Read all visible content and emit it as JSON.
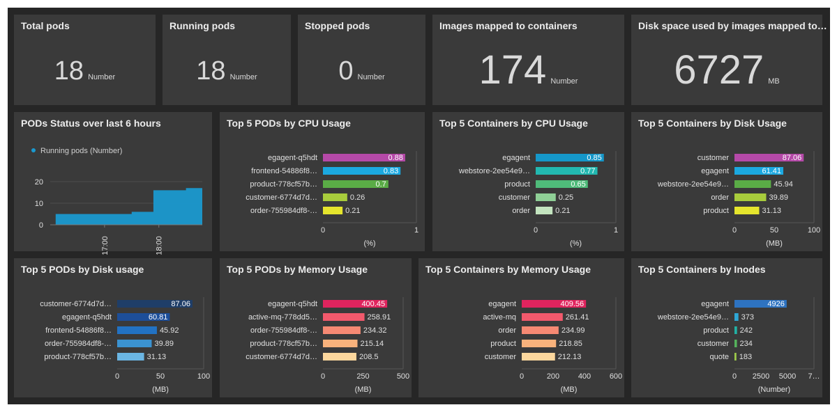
{
  "stats": [
    {
      "title": "Total pods",
      "value": "18",
      "unit": "Number"
    },
    {
      "title": "Running pods",
      "value": "18",
      "unit": "Number"
    },
    {
      "title": "Stopped pods",
      "value": "0",
      "unit": "Number"
    },
    {
      "title": "Images mapped to containers",
      "value": "174",
      "unit": "Number"
    },
    {
      "title": "Disk space used by images mapped to…",
      "value": "6727",
      "unit": "MB"
    }
  ],
  "area": {
    "title": "PODs Status over last 6 hours",
    "legend": "Running pods (Number)",
    "color": "#1a99cf"
  },
  "bars": [
    {
      "title": "Top 5 PODs by CPU Usage",
      "unit": "(%)",
      "ticks": [
        "0",
        "1"
      ],
      "max": 1,
      "labels": [
        "egagent-q5hdt",
        "frontend-54886f8…",
        "product-778cf57b…",
        "customer-6774d7d…",
        "order-755984df8-…"
      ],
      "values": [
        0.88,
        0.83,
        0.7,
        0.26,
        0.21
      ],
      "display": [
        "0.88",
        "0.83",
        "0.7",
        "0.26",
        "0.21"
      ],
      "colors": [
        "#b549a8",
        "#1ba8e0",
        "#5aac46",
        "#a8cc3c",
        "#e5e52d"
      ]
    },
    {
      "title": "Top 5 Containers by CPU Usage",
      "unit": "(%)",
      "ticks": [
        "0",
        "1"
      ],
      "max": 1,
      "labels": [
        "egagent",
        "webstore-2ee54e9…",
        "product",
        "customer",
        "order"
      ],
      "values": [
        0.85,
        0.77,
        0.65,
        0.25,
        0.21
      ],
      "display": [
        "0.85",
        "0.77",
        "0.65",
        "0.25",
        "0.21"
      ],
      "colors": [
        "#1597c9",
        "#22b8b0",
        "#4fbb7a",
        "#8fcf96",
        "#c3e4bf"
      ]
    },
    {
      "title": "Top 5 Containers by Disk Usage",
      "unit": "(MB)",
      "ticks": [
        "0",
        "50",
        "100"
      ],
      "max": 100,
      "labels": [
        "customer",
        "egagent",
        "webstore-2ee54e9…",
        "order",
        "product"
      ],
      "values": [
        87.06,
        61.41,
        45.94,
        39.89,
        31.13
      ],
      "display": [
        "87.06",
        "61.41",
        "45.94",
        "39.89",
        "31.13"
      ],
      "colors": [
        "#b549a8",
        "#1ba8e0",
        "#5aac46",
        "#a8cc3c",
        "#e5e52d"
      ]
    },
    {
      "title": "Top 5 PODs by Disk usage",
      "unit": "(MB)",
      "ticks": [
        "0",
        "50",
        "100"
      ],
      "max": 100,
      "labels": [
        "customer-6774d7d…",
        "egagent-q5hdt",
        "frontend-54886f8…",
        "order-755984df8-…",
        "product-778cf57b…"
      ],
      "values": [
        87.06,
        60.81,
        45.92,
        39.89,
        31.13
      ],
      "display": [
        "87.06",
        "60.81",
        "45.92",
        "39.89",
        "31.13"
      ],
      "colors": [
        "#1f3e68",
        "#1d4e99",
        "#2272c3",
        "#3b93d1",
        "#6bb6e3"
      ]
    },
    {
      "title": "Top 5 PODs by Memory Usage",
      "unit": "(MB)",
      "ticks": [
        "0",
        "250",
        "500"
      ],
      "max": 500,
      "labels": [
        "egagent-q5hdt",
        "active-mq-778dd5…",
        "order-755984df8-…",
        "product-778cf57b…",
        "customer-6774d7d…"
      ],
      "values": [
        400.45,
        258.91,
        234.32,
        215.14,
        208.5
      ],
      "display": [
        "400.45",
        "258.91",
        "234.32",
        "215.14",
        "208.5"
      ],
      "colors": [
        "#e0245e",
        "#f2596c",
        "#f68973",
        "#f8b27c",
        "#fcd79d"
      ]
    },
    {
      "title": "Top 5 Containers by Memory Usage",
      "unit": "(MB)",
      "ticks": [
        "0",
        "200",
        "400",
        "600"
      ],
      "max": 600,
      "labels": [
        "egagent",
        "active-mq",
        "order",
        "product",
        "customer"
      ],
      "values": [
        409.56,
        261.41,
        234.99,
        218.85,
        212.13
      ],
      "display": [
        "409.56",
        "261.41",
        "234.99",
        "218.85",
        "212.13"
      ],
      "colors": [
        "#e0245e",
        "#f2596c",
        "#f68973",
        "#f8b27c",
        "#fcd79d"
      ]
    },
    {
      "title": "Top 5 Containers by Inodes",
      "unit": "(Number)",
      "ticks": [
        "0",
        "2500",
        "5000",
        "7…"
      ],
      "max": 7500,
      "labels": [
        "egagent",
        "webstore-2ee54e9…",
        "product",
        "customer",
        "quote"
      ],
      "values": [
        4926,
        373,
        242,
        234,
        183
      ],
      "display": [
        "4926",
        "373",
        "242",
        "234",
        "183"
      ],
      "colors": [
        "#2e73c1",
        "#2ea7d6",
        "#22b2a5",
        "#55b35c",
        "#9cc94a"
      ]
    }
  ],
  "chart_data": [
    {
      "type": "area",
      "title": "PODs Status over last 6 hours",
      "series": [
        {
          "name": "Running pods (Number)",
          "values": [
            0,
            5,
            5,
            5,
            5,
            5,
            5,
            5,
            6,
            6,
            16,
            16,
            16,
            17,
            17
          ]
        }
      ],
      "x": [
        "",
        "",
        "",
        "",
        "",
        "17:00",
        "",
        "",
        "",
        "",
        "18:00",
        "",
        "",
        "",
        ""
      ],
      "yticks": [
        "0",
        "10",
        "20"
      ],
      "ylim": [
        0,
        20
      ]
    }
  ]
}
